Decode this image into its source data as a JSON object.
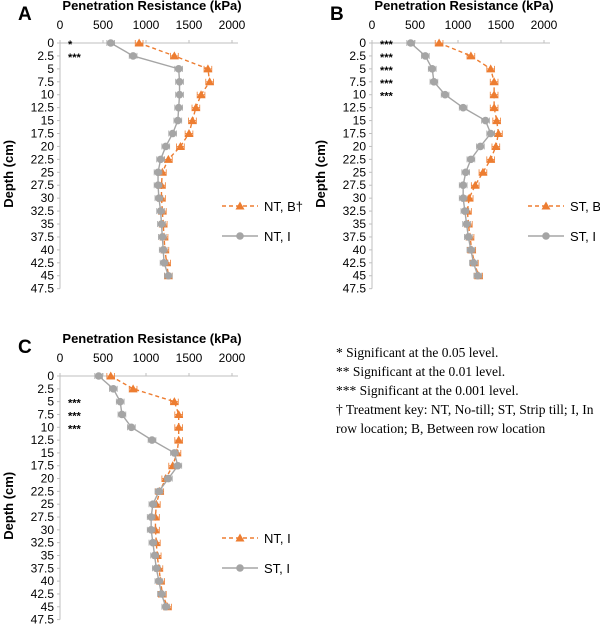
{
  "chart_data": [
    {
      "type": "line",
      "panel": "A",
      "xlabel": "Penetration Resistance (kPa)",
      "ylabel": "Depth (cm)",
      "xticks": [
        "0",
        "500",
        "1000",
        "1500",
        "2000"
      ],
      "xlim": [
        0,
        2000
      ],
      "yticks": [
        "0",
        "2.5",
        "5",
        "7.5",
        "10",
        "12.5",
        "15",
        "17.5",
        "20",
        "22.5",
        "25",
        "27.5",
        "30",
        "32.5",
        "35",
        "37.5",
        "40",
        "42.5",
        "45",
        "47.5"
      ],
      "ylim": [
        0,
        47.5
      ],
      "depth": [
        0,
        2.5,
        5,
        7.5,
        10,
        12.5,
        15,
        17.5,
        20,
        22.5,
        25,
        27.5,
        30,
        32.5,
        35,
        37.5,
        40,
        42.5,
        45
      ],
      "series": [
        {
          "name": "NT, B†",
          "marker": "triangle",
          "style": "dashed",
          "color": "#ED7D31",
          "values": [
            920,
            1330,
            1720,
            1740,
            1640,
            1580,
            1540,
            1500,
            1400,
            1260,
            1190,
            1180,
            1180,
            1190,
            1200,
            1210,
            1220,
            1240,
            1260
          ]
        },
        {
          "name": "NT, I",
          "marker": "circle",
          "style": "solid",
          "color": "#A5A5A5",
          "values": [
            590,
            850,
            1380,
            1390,
            1390,
            1380,
            1370,
            1310,
            1230,
            1170,
            1140,
            1140,
            1150,
            1170,
            1180,
            1190,
            1200,
            1210,
            1260
          ]
        }
      ],
      "significance": [
        {
          "depth": 0,
          "text": "*"
        },
        {
          "depth": 2.5,
          "text": "***"
        }
      ]
    },
    {
      "type": "line",
      "panel": "B",
      "xlabel": "Penetration Resistance (kPa)",
      "ylabel": "Depth (cm)",
      "xticks": [
        "0",
        "500",
        "1000",
        "1500",
        "2000"
      ],
      "xlim": [
        0,
        2000
      ],
      "yticks": [
        "0",
        "2.5",
        "5",
        "7.5",
        "10",
        "12.5",
        "15",
        "17.5",
        "20",
        "22.5",
        "25",
        "27.5",
        "30",
        "32.5",
        "35",
        "37.5",
        "40",
        "42.5",
        "45",
        "47.5"
      ],
      "ylim": [
        0,
        47.5
      ],
      "depth": [
        0,
        2.5,
        5,
        7.5,
        10,
        12.5,
        15,
        17.5,
        20,
        22.5,
        25,
        27.5,
        30,
        32.5,
        35,
        37.5,
        40,
        42.5,
        45
      ],
      "series": [
        {
          "name": "ST, B",
          "marker": "triangle",
          "style": "dashed",
          "color": "#ED7D31",
          "values": [
            780,
            1150,
            1380,
            1420,
            1420,
            1420,
            1450,
            1470,
            1440,
            1380,
            1290,
            1200,
            1130,
            1110,
            1120,
            1140,
            1160,
            1190,
            1240
          ]
        },
        {
          "name": "ST, I",
          "marker": "circle",
          "style": "solid",
          "color": "#A5A5A5",
          "values": [
            450,
            620,
            700,
            720,
            850,
            1060,
            1320,
            1380,
            1260,
            1150,
            1090,
            1060,
            1060,
            1080,
            1100,
            1120,
            1150,
            1180,
            1230
          ]
        }
      ],
      "significance": [
        {
          "depth": 0,
          "text": "***"
        },
        {
          "depth": 2.5,
          "text": "***"
        },
        {
          "depth": 5,
          "text": "***"
        },
        {
          "depth": 7.5,
          "text": "***"
        },
        {
          "depth": 10,
          "text": "***"
        }
      ]
    },
    {
      "type": "line",
      "panel": "C",
      "xlabel": "Penetration Resistance (kPa)",
      "ylabel": "Depth (cm)",
      "xticks": [
        "0",
        "500",
        "1000",
        "1500",
        "2000"
      ],
      "xlim": [
        0,
        2000
      ],
      "yticks": [
        "0",
        "2.5",
        "5",
        "7.5",
        "10",
        "12.5",
        "15",
        "17.5",
        "20",
        "22.5",
        "25",
        "27.5",
        "30",
        "32.5",
        "35",
        "37.5",
        "40",
        "42.5",
        "45",
        "47.5"
      ],
      "ylim": [
        0,
        47.5
      ],
      "depth": [
        0,
        2.5,
        5,
        7.5,
        10,
        12.5,
        15,
        17.5,
        20,
        22.5,
        25,
        27.5,
        30,
        32.5,
        35,
        37.5,
        40,
        42.5,
        45
      ],
      "series": [
        {
          "name": "NT, I",
          "marker": "triangle",
          "style": "dashed",
          "color": "#ED7D31",
          "values": [
            590,
            850,
            1330,
            1380,
            1380,
            1380,
            1360,
            1310,
            1230,
            1160,
            1120,
            1110,
            1110,
            1120,
            1130,
            1150,
            1170,
            1190,
            1250
          ]
        },
        {
          "name": "ST, I",
          "marker": "circle",
          "style": "solid",
          "color": "#A5A5A5",
          "values": [
            450,
            620,
            700,
            720,
            830,
            1070,
            1330,
            1370,
            1260,
            1150,
            1080,
            1060,
            1060,
            1080,
            1100,
            1120,
            1150,
            1180,
            1230
          ]
        }
      ],
      "significance": [
        {
          "depth": 5,
          "text": "***"
        },
        {
          "depth": 7.5,
          "text": "***"
        },
        {
          "depth": 10,
          "text": "***"
        }
      ]
    }
  ],
  "notes": [
    "* Significant at the 0.05 level.",
    "** Significant  at the 0.01 level.",
    "*** Significant at the 0.001 level.",
    "† Treatment key:  NT, No-till; ST, Strip till;  I, In row location; B, Between row location"
  ]
}
